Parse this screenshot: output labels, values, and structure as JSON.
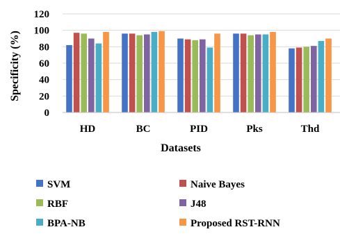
{
  "chart_data": {
    "type": "bar",
    "xlabel": "Datasets",
    "ylabel": "Specificity (%)",
    "ylim": [
      0,
      120
    ],
    "yticks": [
      0,
      20,
      40,
      60,
      80,
      100,
      120
    ],
    "grid": true,
    "legend_position": "bottom",
    "categories": [
      "HD",
      "BC",
      "PID",
      "Pks",
      "Thd"
    ],
    "series": [
      {
        "name": "SVM",
        "color": "#4472C4",
        "values": [
          82,
          96,
          90,
          96,
          78
        ]
      },
      {
        "name": "Naive Bayes",
        "color": "#C0504D",
        "values": [
          97,
          96,
          89,
          96,
          79
        ]
      },
      {
        "name": "RBF",
        "color": "#9BBB59",
        "values": [
          96,
          94,
          88,
          94,
          80
        ]
      },
      {
        "name": "J48",
        "color": "#8064A2",
        "values": [
          90,
          95,
          89,
          95,
          81
        ]
      },
      {
        "name": "BPA-NB",
        "color": "#4BACC6",
        "values": [
          84,
          98,
          79,
          95,
          87
        ]
      },
      {
        "name": "Proposed RST-RNN",
        "color": "#F79646",
        "values": [
          98,
          99,
          96,
          98,
          90
        ]
      }
    ]
  }
}
